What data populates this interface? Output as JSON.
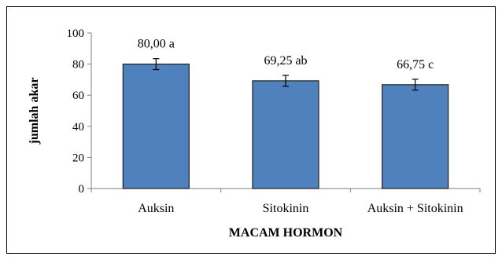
{
  "chart_data": {
    "type": "bar",
    "categories": [
      "Auksin",
      "Sitokinin",
      "Auksin + Sitokinin"
    ],
    "values": [
      80.0,
      69.25,
      66.75
    ],
    "errors": [
      3.5,
      3.5,
      3.5
    ],
    "data_labels": [
      "80,00 a",
      "69,25 ab",
      "66,75 c"
    ],
    "xlabel": "MACAM HORMON",
    "ylabel": "jumlah  akar",
    "ylim": [
      0,
      100
    ],
    "yticks": [
      0,
      20,
      40,
      60,
      80,
      100
    ],
    "grid": false,
    "legend": "none",
    "bar_color": "#4F81BD",
    "bar_edge_color": "#1F1F1F"
  }
}
